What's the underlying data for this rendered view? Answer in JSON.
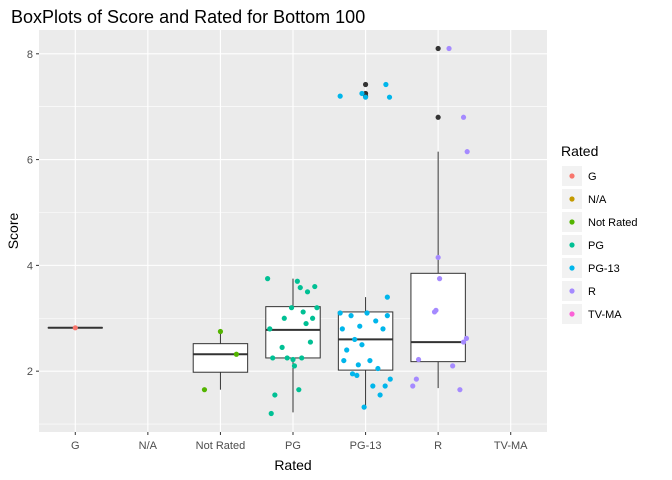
{
  "chart_data": {
    "type": "boxplot",
    "title": "BoxPlots of Score and Rated for Bottom 100",
    "xlabel": "Rated",
    "ylabel": "Score",
    "ylim": [
      0.85,
      8.45
    ],
    "yticks": [
      2,
      4,
      6,
      8
    ],
    "categories": [
      "G",
      "N/A",
      "Not Rated",
      "PG",
      "PG-13",
      "R",
      "TV-MA"
    ],
    "legend": {
      "title": "Rated",
      "position": "right",
      "entries": [
        {
          "label": "G",
          "color": "#F8766D"
        },
        {
          "label": "N/A",
          "color": "#C49A00"
        },
        {
          "label": "Not Rated",
          "color": "#53B400"
        },
        {
          "label": "PG",
          "color": "#00C094"
        },
        {
          "label": "PG-13",
          "color": "#00B6EB"
        },
        {
          "label": "R",
          "color": "#A58AFF"
        },
        {
          "label": "TV-MA",
          "color": "#FB61D7"
        }
      ]
    },
    "boxes": [
      {
        "category": "G",
        "min": 2.82,
        "q1": 2.82,
        "median": 2.82,
        "q3": 2.82,
        "max": 2.82,
        "outliers": []
      },
      {
        "category": "Not Rated",
        "min": 1.65,
        "q1": 1.98,
        "median": 2.32,
        "q3": 2.52,
        "max": 2.75,
        "outliers": []
      },
      {
        "category": "PG",
        "min": 1.22,
        "q1": 2.25,
        "median": 2.78,
        "q3": 3.22,
        "max": 3.75,
        "outliers": []
      },
      {
        "category": "PG-13",
        "min": 1.32,
        "q1": 2.02,
        "median": 2.6,
        "q3": 3.12,
        "max": 3.4,
        "outliers": [
          7.2,
          7.25,
          7.42
        ]
      },
      {
        "category": "R",
        "min": 1.68,
        "q1": 2.18,
        "median": 2.55,
        "q3": 3.85,
        "max": 6.15,
        "outliers": [
          6.8,
          8.1
        ]
      }
    ],
    "points": [
      {
        "category": "G",
        "jitter": 0.0,
        "y": 2.82
      },
      {
        "category": "Not Rated",
        "jitter": -0.22,
        "y": 1.65
      },
      {
        "category": "Not Rated",
        "jitter": 0.0,
        "y": 2.75
      },
      {
        "category": "Not Rated",
        "jitter": 0.22,
        "y": 2.32
      },
      {
        "category": "PG",
        "jitter": -0.35,
        "y": 3.75
      },
      {
        "category": "PG",
        "jitter": -0.28,
        "y": 2.25
      },
      {
        "category": "PG",
        "jitter": -0.25,
        "y": 1.55
      },
      {
        "category": "PG",
        "jitter": -0.3,
        "y": 1.2
      },
      {
        "category": "PG",
        "jitter": -0.32,
        "y": 2.8
      },
      {
        "category": "PG",
        "jitter": -0.15,
        "y": 2.45
      },
      {
        "category": "PG",
        "jitter": -0.12,
        "y": 3.0
      },
      {
        "category": "PG",
        "jitter": -0.08,
        "y": 2.25
      },
      {
        "category": "PG",
        "jitter": -0.02,
        "y": 3.2
      },
      {
        "category": "PG",
        "jitter": 0.02,
        "y": 2.1
      },
      {
        "category": "PG",
        "jitter": 0.06,
        "y": 3.7
      },
      {
        "category": "PG",
        "jitter": 0.1,
        "y": 3.58
      },
      {
        "category": "PG",
        "jitter": 0.14,
        "y": 3.12
      },
      {
        "category": "PG",
        "jitter": 0.18,
        "y": 2.9
      },
      {
        "category": "PG",
        "jitter": 0.2,
        "y": 3.5
      },
      {
        "category": "PG",
        "jitter": 0.24,
        "y": 2.55
      },
      {
        "category": "PG",
        "jitter": 0.27,
        "y": 3.0
      },
      {
        "category": "PG",
        "jitter": 0.3,
        "y": 3.6
      },
      {
        "category": "PG",
        "jitter": 0.33,
        "y": 3.2
      },
      {
        "category": "PG",
        "jitter": 0.08,
        "y": 1.65
      },
      {
        "category": "PG",
        "jitter": 0.12,
        "y": 2.25
      },
      {
        "category": "PG",
        "jitter": 0.0,
        "y": 2.22
      },
      {
        "category": "PG-13",
        "jitter": -0.35,
        "y": 7.2
      },
      {
        "category": "PG-13",
        "jitter": -0.05,
        "y": 7.25
      },
      {
        "category": "PG-13",
        "jitter": 0.0,
        "y": 7.18
      },
      {
        "category": "PG-13",
        "jitter": 0.28,
        "y": 7.42
      },
      {
        "category": "PG-13",
        "jitter": 0.33,
        "y": 7.18
      },
      {
        "category": "PG-13",
        "jitter": -0.35,
        "y": 3.1
      },
      {
        "category": "PG-13",
        "jitter": -0.32,
        "y": 2.8
      },
      {
        "category": "PG-13",
        "jitter": -0.3,
        "y": 2.2
      },
      {
        "category": "PG-13",
        "jitter": -0.26,
        "y": 2.4
      },
      {
        "category": "PG-13",
        "jitter": -0.2,
        "y": 3.05
      },
      {
        "category": "PG-13",
        "jitter": -0.18,
        "y": 1.95
      },
      {
        "category": "PG-13",
        "jitter": -0.15,
        "y": 2.6
      },
      {
        "category": "PG-13",
        "jitter": -0.12,
        "y": 1.92
      },
      {
        "category": "PG-13",
        "jitter": -0.08,
        "y": 2.85
      },
      {
        "category": "PG-13",
        "jitter": -0.05,
        "y": 2.5
      },
      {
        "category": "PG-13",
        "jitter": -0.02,
        "y": 1.32
      },
      {
        "category": "PG-13",
        "jitter": 0.02,
        "y": 3.1
      },
      {
        "category": "PG-13",
        "jitter": 0.06,
        "y": 2.2
      },
      {
        "category": "PG-13",
        "jitter": 0.1,
        "y": 1.72
      },
      {
        "category": "PG-13",
        "jitter": 0.14,
        "y": 2.95
      },
      {
        "category": "PG-13",
        "jitter": 0.17,
        "y": 2.05
      },
      {
        "category": "PG-13",
        "jitter": 0.2,
        "y": 1.55
      },
      {
        "category": "PG-13",
        "jitter": 0.24,
        "y": 2.8
      },
      {
        "category": "PG-13",
        "jitter": 0.27,
        "y": 1.72
      },
      {
        "category": "PG-13",
        "jitter": 0.3,
        "y": 3.05
      },
      {
        "category": "PG-13",
        "jitter": 0.34,
        "y": 1.85
      },
      {
        "category": "PG-13",
        "jitter": 0.3,
        "y": 3.4
      },
      {
        "category": "PG-13",
        "jitter": -0.1,
        "y": 2.12
      },
      {
        "category": "R",
        "jitter": 0.15,
        "y": 8.1
      },
      {
        "category": "R",
        "jitter": 0.35,
        "y": 6.8
      },
      {
        "category": "R",
        "jitter": 0.4,
        "y": 6.15
      },
      {
        "category": "R",
        "jitter": 0.0,
        "y": 4.15
      },
      {
        "category": "R",
        "jitter": 0.02,
        "y": 3.75
      },
      {
        "category": "R",
        "jitter": -0.05,
        "y": 3.12
      },
      {
        "category": "R",
        "jitter": -0.03,
        "y": 3.15
      },
      {
        "category": "R",
        "jitter": -0.35,
        "y": 1.72
      },
      {
        "category": "R",
        "jitter": -0.3,
        "y": 1.85
      },
      {
        "category": "R",
        "jitter": -0.27,
        "y": 2.22
      },
      {
        "category": "R",
        "jitter": 0.35,
        "y": 2.55
      },
      {
        "category": "R",
        "jitter": 0.39,
        "y": 2.62
      },
      {
        "category": "R",
        "jitter": 0.3,
        "y": 1.65
      },
      {
        "category": "R",
        "jitter": 0.2,
        "y": 2.1
      }
    ],
    "outlier_points": [
      {
        "category": "PG-13",
        "y": 7.2
      },
      {
        "category": "PG-13",
        "y": 7.25
      },
      {
        "category": "PG-13",
        "y": 7.42
      },
      {
        "category": "R",
        "y": 6.8
      },
      {
        "category": "R",
        "y": 8.1
      }
    ],
    "grid": true
  }
}
